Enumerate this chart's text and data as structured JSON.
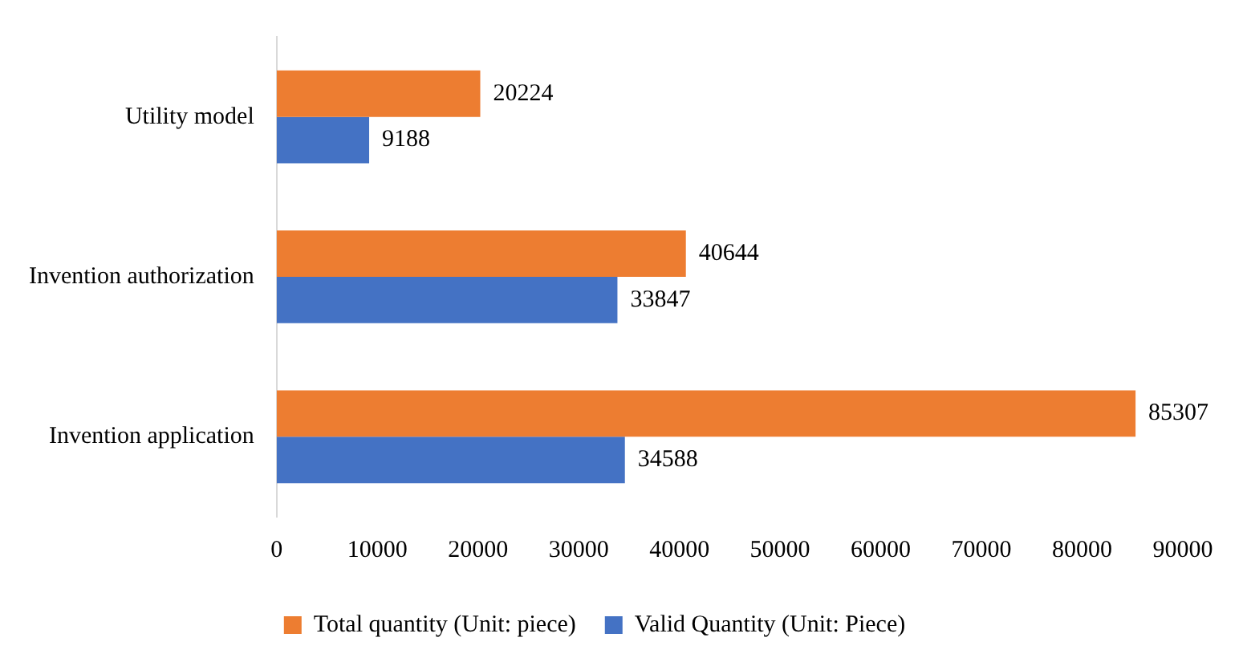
{
  "chart_data": {
    "type": "bar",
    "orientation": "horizontal",
    "categories": [
      "Utility model",
      "Invention authorization",
      "Invention application"
    ],
    "series": [
      {
        "name": "Total quantity (Unit: piece)",
        "color": "#ed7d31",
        "values": [
          20224,
          40644,
          85307
        ]
      },
      {
        "name": "Valid Quantity (Unit: Piece)",
        "color": "#4472c4",
        "values": [
          9188,
          33847,
          34588
        ]
      }
    ],
    "xlim": [
      0,
      90000
    ],
    "xticks": [
      0,
      10000,
      20000,
      30000,
      40000,
      50000,
      60000,
      70000,
      80000,
      90000
    ],
    "grid": false,
    "legend": "bottom",
    "data_labels": true
  }
}
